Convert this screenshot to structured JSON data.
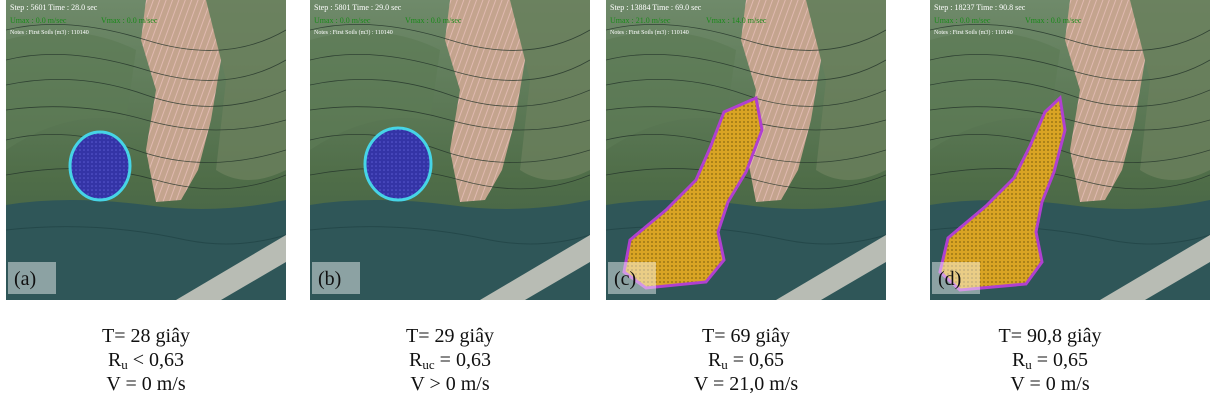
{
  "panels": [
    {
      "label": "(a)",
      "step": "Step : 5601   Time : 28.0 sec",
      "umax": "Umax : 0.0 m/sec",
      "vmax": "Vmax : 0.0 m/sec",
      "notes": "Notes : First Soils (m3) : 110140",
      "caption": {
        "time": "T= 28 giây",
        "r_base": "R",
        "r_sub": "u",
        "r_rest": " < 0,63",
        "v": "V = 0 m/s"
      }
    },
    {
      "label": "(b)",
      "step": "Step : 5801   Time : 29.0 sec",
      "umax": "Umax : 0.0 m/sec",
      "vmax": "Vmax : 0.0 m/sec",
      "notes": "Notes : First Soils (m3) : 110140",
      "caption": {
        "time": "T= 29 giây",
        "r_base": "R",
        "r_sub": "uc",
        "r_rest": " = 0,63",
        "v": "V > 0 m/s"
      }
    },
    {
      "label": "(c)",
      "step": "Step : 13884   Time : 69.0 sec",
      "umax": "Umax : 21.0 m/sec",
      "vmax": "Vmax : 14.0 m/sec",
      "notes": "Notes : First Soils (m3) : 110140",
      "caption": {
        "time": "T= 69 giây",
        "r_base": "R",
        "r_sub": "u",
        "r_rest": " = 0,65",
        "v": "V = 21,0 m/s"
      }
    },
    {
      "label": "(d)",
      "step": "Step : 18237   Time : 90.8 sec",
      "umax": "Umax : 0.0 m/sec",
      "vmax": "Vmax : 0.0 m/sec",
      "notes": "Notes : First Soils (m3) : 110140",
      "caption": {
        "time": "T= 90,8 giây",
        "r_base": "R",
        "r_sub": "u",
        "r_rest": " = 0,65",
        "v": "V = 0 m/s"
      }
    }
  ]
}
